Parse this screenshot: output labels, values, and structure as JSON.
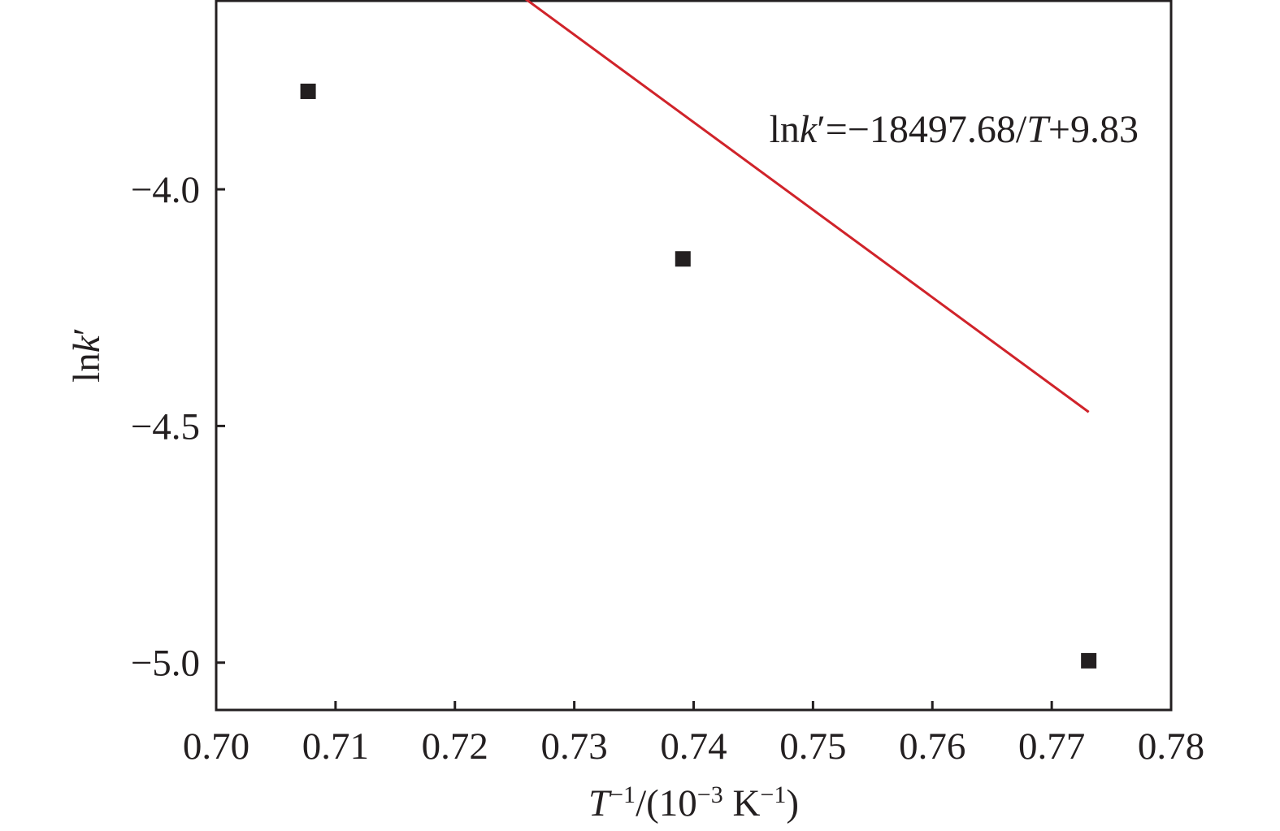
{
  "chart_data": {
    "type": "scatter",
    "title": "",
    "xlabel": {
      "parts": [
        {
          "text": "T",
          "italic": true
        },
        {
          "text": "−1",
          "sup": true
        },
        {
          "text": "/(10"
        },
        {
          "text": "−3",
          "sup": true
        },
        {
          "text": " K"
        },
        {
          "text": "−1",
          "sup": true
        },
        {
          "text": ")"
        }
      ]
    },
    "ylabel": {
      "parts": [
        {
          "text": "ln"
        },
        {
          "text": "k",
          "italic": true
        },
        {
          "text": "′"
        }
      ]
    },
    "xlim": [
      0.7,
      0.78
    ],
    "ylim": [
      -5.1,
      -3.6
    ],
    "xticks": [
      0.7,
      0.71,
      0.72,
      0.73,
      0.74,
      0.75,
      0.76,
      0.77,
      0.78
    ],
    "xtick_labels": [
      "0.70",
      "0.71",
      "0.72",
      "0.73",
      "0.74",
      "0.75",
      "0.76",
      "0.77",
      "0.78"
    ],
    "yticks": [
      -4.0,
      -4.5,
      -5.0
    ],
    "ytick_labels": [
      "−4.0",
      "−4.5",
      "−5.0"
    ],
    "grid": false,
    "points": [
      {
        "x": 0.7077,
        "y": -3.793
      },
      {
        "x": 0.7391,
        "y": -4.147
      },
      {
        "x": 0.7731,
        "y": -4.996
      }
    ],
    "fit_line": {
      "slope": -18497.68,
      "intercept": 9.83,
      "x_range": [
        0.7077,
        0.7731
      ]
    },
    "annotation": {
      "parts": [
        {
          "text": "ln"
        },
        {
          "text": "k",
          "italic": true
        },
        {
          "text": "′=−18497.68/"
        },
        {
          "text": "T",
          "italic": true
        },
        {
          "text": "+9.83"
        }
      ]
    },
    "colors": {
      "points": "#231f20",
      "fit_line": "#d0232a",
      "axes": "#231f20"
    }
  }
}
